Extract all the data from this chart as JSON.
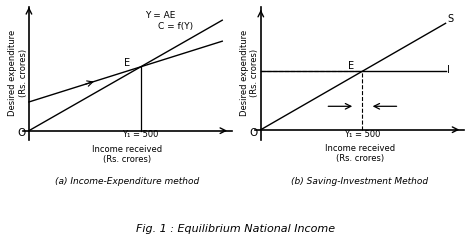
{
  "fig_title": "Fig. 1 : Equilibrium National Income",
  "subplot_a_title": "(a) Income-Expenditure method",
  "subplot_b_title": "(b) Saving-Investment Method",
  "background_color": "#ffffff",
  "ylabel_a": "Desired expenditure\n(Rs. crores)",
  "xlabel_a": "Income received\n(Rs. crores)",
  "ylabel_b": "Desired expenditure\n(Rs. crores)",
  "xlabel_b": "Income received\n(Rs. crores)",
  "label_YAE": "Y = AE",
  "label_CfY": "C = f(Y)",
  "label_S": "S",
  "label_I": "I",
  "label_E": "E",
  "label_O": "O",
  "eq_y_label": "Y₁ = 500"
}
